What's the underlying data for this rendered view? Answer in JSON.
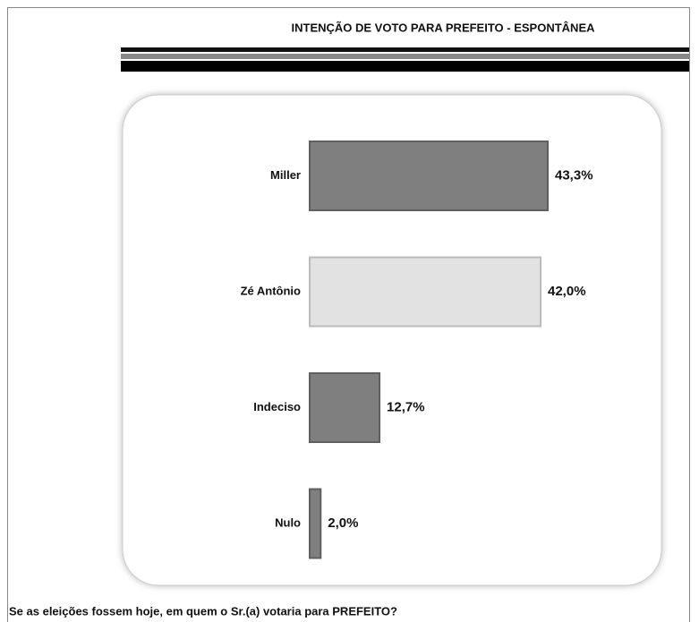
{
  "chart_data": {
    "type": "bar",
    "orientation": "horizontal",
    "title": "INTENÇÃO DE VOTO PARA PREFEITO - ESPONTÂNEA",
    "caption": "Se as eleições fossem hoje, em quem o Sr.(a) votaria para PREFEITO?",
    "categories": [
      "Miller",
      "Zé Antônio",
      "Indeciso",
      "Nulo"
    ],
    "values": [
      43.3,
      42.0,
      12.7,
      2.0
    ],
    "value_labels": [
      "43,3%",
      "42,0%",
      "12,7%",
      "2,0%"
    ],
    "colors": [
      "#7f7f7f",
      "#e2e2e2",
      "#7f7f7f",
      "#7f7f7f"
    ]
  }
}
